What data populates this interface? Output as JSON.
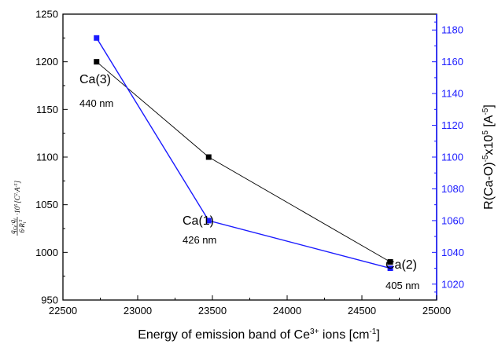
{
  "chart_data": {
    "type": "line",
    "x": [
      22725,
      23475,
      24690
    ],
    "xlabel": {
      "main": "Energy of emission band of Ce",
      "sup1": "3+",
      "mid": " ions [cm",
      "sup2": "-1",
      "end": "]"
    },
    "xlim": [
      22500,
      25000
    ],
    "x_ticks": [
      "22500",
      "23000",
      "23500",
      "24000",
      "24500",
      "25000"
    ],
    "ylabel_left": {
      "frac_num": "q",
      "frac_num_sub1": "Ce",
      "frac_num_mid": "·q",
      "frac_num_sub2": "i",
      "frac_den": "6·R",
      "frac_den_sub": "i",
      "frac_den_sup": "5",
      "tail": "·10",
      "tail_sup": "5",
      "unit": "[C",
      "unit_sup1": "2",
      "unit_mid": "·A",
      "unit_sup2": "-5",
      "unit_end": "]"
    },
    "ylim_left": [
      950,
      1250
    ],
    "y_ticks_left": [
      "950",
      "1000",
      "1050",
      "1100",
      "1150",
      "1200",
      "1250"
    ],
    "ylabel_right": {
      "main": "R(Ca-O)",
      "sup1": "-5",
      "mid": "x10",
      "sup2": "5",
      "unit": " [A",
      "sup3": "-5",
      "end": "]"
    },
    "ylim_right": [
      1010,
      1190
    ],
    "y_ticks_right": [
      "1020",
      "1040",
      "1060",
      "1080",
      "1100",
      "1120",
      "1140",
      "1160",
      "1180"
    ],
    "series": [
      {
        "axis": "left",
        "color": "#000000",
        "values": [
          1200,
          1100,
          990
        ]
      },
      {
        "axis": "right",
        "color": "#1a1aff",
        "values": [
          1175,
          1060,
          1030
        ]
      }
    ],
    "annotations": [
      {
        "name": "Ca(3)",
        "wavelength": "440 nm"
      },
      {
        "name": "Ca(1)",
        "wavelength": "426 nm"
      },
      {
        "name": "Ca(2)",
        "wavelength": "405 nm"
      }
    ],
    "legend": "none",
    "grid": false
  }
}
